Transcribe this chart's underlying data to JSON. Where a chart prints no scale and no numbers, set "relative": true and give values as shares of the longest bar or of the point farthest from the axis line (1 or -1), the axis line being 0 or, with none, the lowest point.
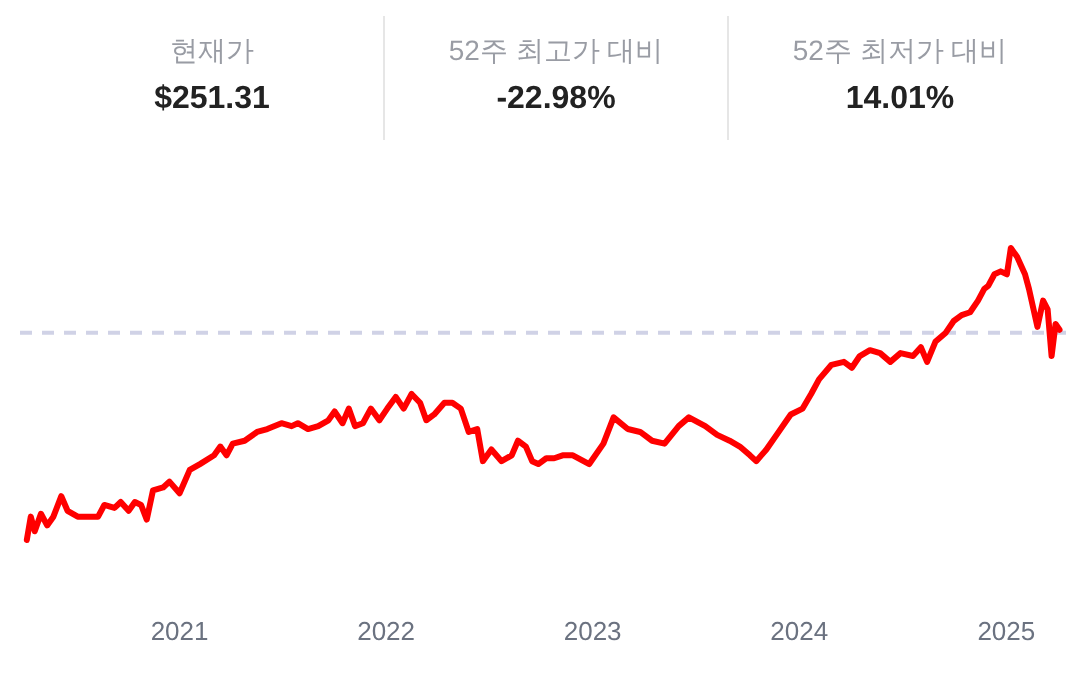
{
  "chart_data": [
    {
      "type": "other",
      "annotations": [
        "현재가",
        "$251.31",
        "52주 최고가 대비",
        "-22.98%",
        "52주 최저가 대비",
        "14.01%"
      ]
    },
    {
      "type": "line",
      "relative": true,
      "grid": false,
      "line_style": "solid",
      "xlim": [
        "2020-03-25",
        "2025-04-20"
      ],
      "xticks": [
        {
          "value": "2021-01-01",
          "label": "2021"
        },
        {
          "value": "2022-01-01",
          "label": "2022"
        },
        {
          "value": "2023-01-01",
          "label": "2023"
        },
        {
          "value": "2024-01-01",
          "label": "2024"
        },
        {
          "value": "2025-01-01",
          "label": "2025"
        }
      ],
      "ref_lines": [
        {
          "axis": "y",
          "value": 0.71,
          "label": null,
          "color": "#d0d2e6",
          "line_style": "dashed"
        }
      ],
      "x": [
        "2020-04-06",
        "2020-04-13",
        "2020-04-20",
        "2020-05-01",
        "2020-05-12",
        "2020-05-23",
        "2020-06-06",
        "2020-06-17",
        "2020-07-05",
        "2020-07-23",
        "2020-08-10",
        "2020-08-21",
        "2020-09-08",
        "2020-09-19",
        "2020-10-03",
        "2020-10-14",
        "2020-10-25",
        "2020-11-04",
        "2020-11-15",
        "2020-12-03",
        "2020-12-14",
        "2021-01-01",
        "2021-01-19",
        "2021-02-06",
        "2021-03-03",
        "2021-03-14",
        "2021-03-25",
        "2021-04-05",
        "2021-04-26",
        "2021-05-18",
        "2021-06-05",
        "2021-06-30",
        "2021-07-18",
        "2021-07-29",
        "2021-08-16",
        "2021-09-03",
        "2021-09-21",
        "2021-10-02",
        "2021-10-16",
        "2021-10-27",
        "2021-11-07",
        "2021-11-21",
        "2021-12-05",
        "2021-12-20",
        "2022-01-03",
        "2022-01-18",
        "2022-02-01",
        "2022-02-15",
        "2022-03-02",
        "2022-03-13",
        "2022-03-27",
        "2022-04-14",
        "2022-04-28",
        "2022-05-13",
        "2022-05-27",
        "2022-06-11",
        "2022-06-21",
        "2022-07-06",
        "2022-07-24",
        "2022-08-11",
        "2022-08-22",
        "2022-09-05",
        "2022-09-16",
        "2022-09-27",
        "2022-10-11",
        "2022-10-25",
        "2022-11-09",
        "2022-11-27",
        "2022-12-26",
        "2023-01-20",
        "2023-02-07",
        "2023-03-04",
        "2023-03-26",
        "2023-04-16",
        "2023-05-08",
        "2023-06-02",
        "2023-06-20",
        "2023-07-19",
        "2023-08-09",
        "2023-08-31",
        "2023-09-18",
        "2023-10-06",
        "2023-10-17",
        "2023-11-04",
        "2023-11-22",
        "2023-12-17",
        "2024-01-07",
        "2024-01-22",
        "2024-02-05",
        "2024-02-27",
        "2024-03-20",
        "2024-04-03",
        "2024-04-17",
        "2024-05-05",
        "2024-05-23",
        "2024-06-10",
        "2024-06-28",
        "2024-07-20",
        "2024-08-03",
        "2024-08-14",
        "2024-08-29",
        "2024-09-16",
        "2024-09-30",
        "2024-10-14",
        "2024-10-29",
        "2024-11-12",
        "2024-11-23",
        "2024-11-30",
        "2024-12-11",
        "2024-12-22",
        "2025-01-02",
        "2025-01-09",
        "2025-01-20",
        "2025-02-03",
        "2025-02-10",
        "2025-02-25",
        "2025-03-07",
        "2025-03-15",
        "2025-03-22",
        "2025-03-29",
        "2025-04-05"
      ],
      "series": [
        {
          "color": "#ff0000",
          "values": [
            0,
            0.08,
            0.03,
            0.09,
            0.05,
            0.08,
            0.15,
            0.1,
            0.08,
            0.08,
            0.08,
            0.12,
            0.11,
            0.13,
            0.1,
            0.13,
            0.12,
            0.07,
            0.17,
            0.18,
            0.2,
            0.16,
            0.24,
            0.26,
            0.29,
            0.32,
            0.29,
            0.33,
            0.34,
            0.37,
            0.38,
            0.4,
            0.39,
            0.4,
            0.38,
            0.39,
            0.41,
            0.44,
            0.4,
            0.45,
            0.39,
            0.4,
            0.45,
            0.41,
            0.45,
            0.49,
            0.45,
            0.5,
            0.47,
            0.41,
            0.43,
            0.47,
            0.47,
            0.45,
            0.37,
            0.38,
            0.27,
            0.31,
            0.27,
            0.29,
            0.34,
            0.32,
            0.27,
            0.26,
            0.28,
            0.28,
            0.29,
            0.29,
            0.26,
            0.33,
            0.42,
            0.38,
            0.37,
            0.34,
            0.33,
            0.39,
            0.42,
            0.39,
            0.36,
            0.34,
            0.32,
            0.29,
            0.27,
            0.31,
            0.36,
            0.43,
            0.45,
            0.5,
            0.55,
            0.6,
            0.61,
            0.59,
            0.63,
            0.65,
            0.64,
            0.61,
            0.64,
            0.63,
            0.66,
            0.61,
            0.68,
            0.71,
            0.75,
            0.77,
            0.78,
            0.82,
            0.86,
            0.87,
            0.91,
            0.92,
            0.91,
            1.0,
            0.97,
            0.91,
            0.86,
            0.73,
            0.82,
            0.79,
            0.63,
            0.74,
            0.72
          ]
        }
      ]
    }
  ]
}
